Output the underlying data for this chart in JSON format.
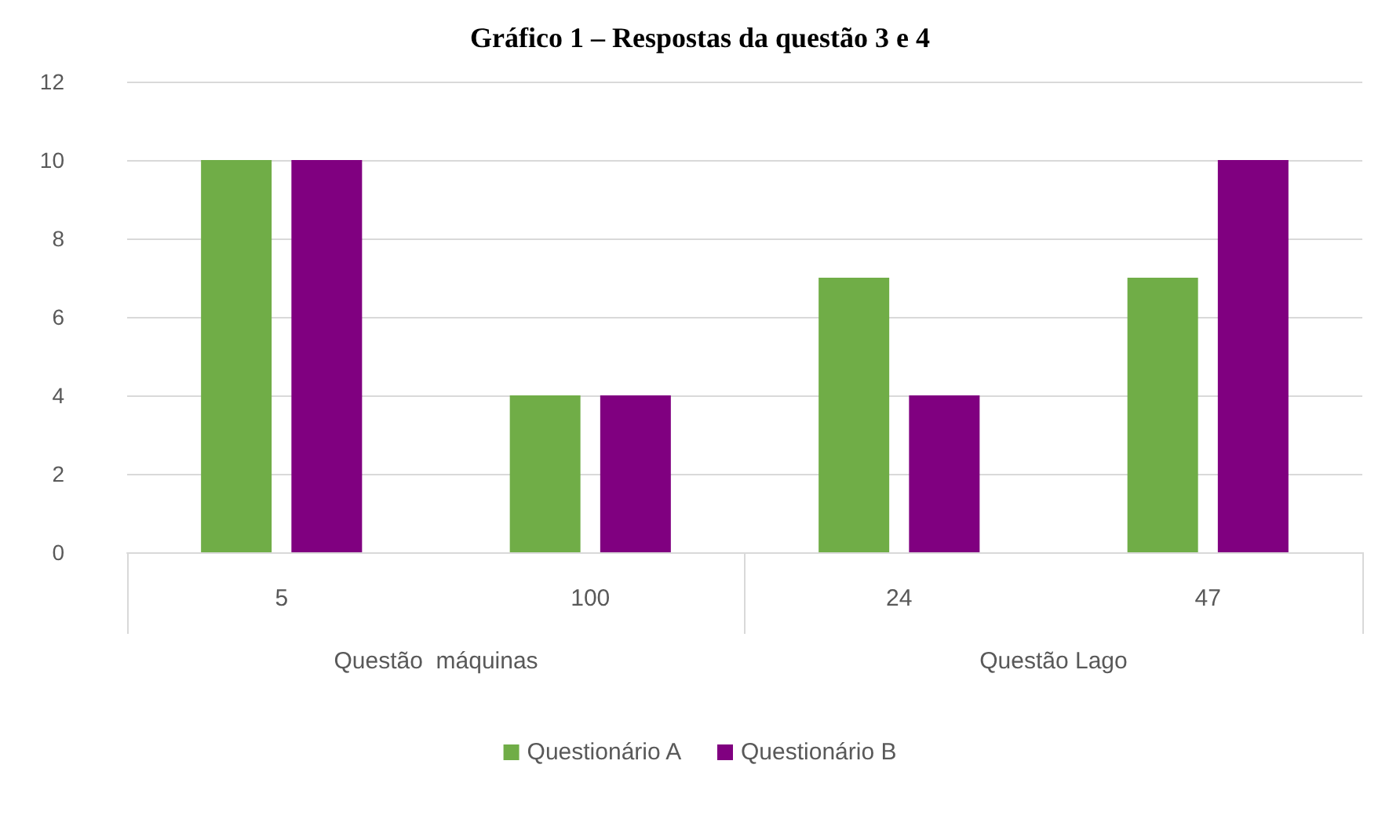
{
  "chart_data": {
    "type": "bar",
    "title": "Gráfico 1 – Respostas da questão 3 e 4",
    "categories": [
      "5",
      "100",
      "24",
      "47"
    ],
    "series": [
      {
        "name": "Questionário A",
        "color": "#70ad47",
        "values": [
          10,
          4,
          7,
          7
        ]
      },
      {
        "name": "Questionário B",
        "color": "#800080",
        "values": [
          10,
          4,
          4,
          10
        ]
      }
    ],
    "ylim": [
      0,
      12
    ],
    "yticks": [
      0,
      2,
      4,
      6,
      8,
      10,
      12
    ],
    "grid": "y",
    "legend": "bottom",
    "annotations": [
      "Questão  máquinas",
      "Questão Lago"
    ]
  }
}
